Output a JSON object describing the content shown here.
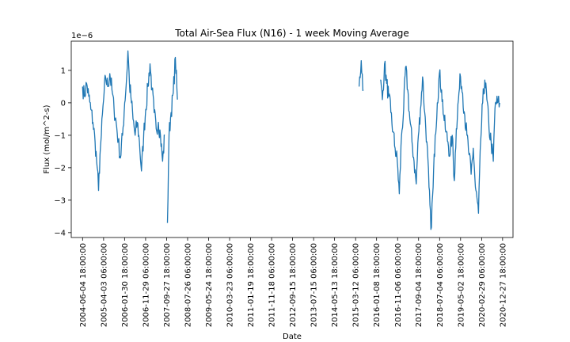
{
  "chart_data": {
    "type": "line",
    "title": "Total Air-Sea Flux (N16) - 1 week Moving Average",
    "xlabel": "Date",
    "ylabel": "Flux (mol/m^2-s)",
    "offset_label": "1e−6",
    "ylim": [
      -4.15,
      1.9
    ],
    "xlim": [
      "2003-12-24",
      "2021-05-26"
    ],
    "yticks": [
      {
        "value": 1,
        "label": "1"
      },
      {
        "value": 0,
        "label": "0"
      },
      {
        "value": -1,
        "label": "−1"
      },
      {
        "value": -2,
        "label": "−2"
      },
      {
        "value": -3,
        "label": "−3"
      },
      {
        "value": -4,
        "label": "−4"
      }
    ],
    "xticks": [
      {
        "date": "2004-06-04",
        "label": "2004-06-04 18:00:00"
      },
      {
        "date": "2005-04-03",
        "label": "2005-04-03 06:00:00"
      },
      {
        "date": "2006-01-30",
        "label": "2006-01-30 18:00:00"
      },
      {
        "date": "2006-11-29",
        "label": "2006-11-29 06:00:00"
      },
      {
        "date": "2007-09-27",
        "label": "2007-09-27 18:00:00"
      },
      {
        "date": "2008-07-26",
        "label": "2008-07-26 06:00:00"
      },
      {
        "date": "2009-05-24",
        "label": "2009-05-24 18:00:00"
      },
      {
        "date": "2010-03-23",
        "label": "2010-03-23 06:00:00"
      },
      {
        "date": "2011-01-19",
        "label": "2011-01-19 18:00:00"
      },
      {
        "date": "2011-11-18",
        "label": "2011-11-18 06:00:00"
      },
      {
        "date": "2012-09-15",
        "label": "2012-09-15 18:00:00"
      },
      {
        "date": "2013-07-15",
        "label": "2013-07-15 06:00:00"
      },
      {
        "date": "2014-05-13",
        "label": "2014-05-13 18:00:00"
      },
      {
        "date": "2015-03-12",
        "label": "2015-03-12 06:00:00"
      },
      {
        "date": "2016-01-08",
        "label": "2016-01-08 18:00:00"
      },
      {
        "date": "2016-11-06",
        "label": "2016-11-06 06:00:00"
      },
      {
        "date": "2017-09-04",
        "label": "2017-09-04 18:00:00"
      },
      {
        "date": "2018-07-04",
        "label": "2018-07-04 06:00:00"
      },
      {
        "date": "2019-05-02",
        "label": "2019-05-02 18:00:00"
      },
      {
        "date": "2020-02-29",
        "label": "2020-02-29 06:00:00"
      },
      {
        "date": "2020-12-27",
        "label": "2020-12-27 18:00:00"
      }
    ],
    "grid": false,
    "line_color": "#1f77b4",
    "series": [
      {
        "segments": [
          [
            [
              "2004-06-04",
              0.5
            ],
            [
              "2004-07-01",
              0.2
            ],
            [
              "2004-08-01",
              0.6
            ],
            [
              "2004-09-01",
              0.2
            ],
            [
              "2004-10-01",
              -0.2
            ],
            [
              "2004-11-01",
              -0.6
            ],
            [
              "2004-12-01",
              -1.2
            ],
            [
              "2005-01-01",
              -2.0
            ],
            [
              "2005-01-20",
              -2.7
            ],
            [
              "2005-02-10",
              -1.6
            ],
            [
              "2005-03-01",
              -1.0
            ],
            [
              "2005-04-03",
              0.1
            ],
            [
              "2005-05-01",
              0.8
            ],
            [
              "2005-06-01",
              0.5
            ],
            [
              "2005-07-01",
              0.9
            ],
            [
              "2005-08-01",
              0.4
            ],
            [
              "2005-09-01",
              -0.2
            ],
            [
              "2005-10-01",
              -0.6
            ],
            [
              "2005-11-01",
              -1.2
            ],
            [
              "2005-12-01",
              -1.7
            ],
            [
              "2006-01-01",
              -1.0
            ],
            [
              "2006-02-01",
              0.0
            ],
            [
              "2006-03-01",
              0.8
            ],
            [
              "2006-03-20",
              1.6
            ],
            [
              "2006-04-10",
              0.6
            ],
            [
              "2006-05-01",
              0.2
            ],
            [
              "2006-06-01",
              -0.5
            ],
            [
              "2006-07-01",
              -1.0
            ],
            [
              "2006-08-01",
              -0.6
            ],
            [
              "2006-09-01",
              -1.2
            ],
            [
              "2006-10-01",
              -2.1
            ],
            [
              "2006-11-01",
              -1.0
            ],
            [
              "2006-12-01",
              -0.2
            ],
            [
              "2007-01-01",
              0.5
            ],
            [
              "2007-02-01",
              1.2
            ],
            [
              "2007-03-01",
              0.4
            ],
            [
              "2007-04-01",
              -0.3
            ],
            [
              "2007-05-01",
              -0.8
            ],
            [
              "2007-06-01",
              -0.6
            ],
            [
              "2007-07-01",
              -1.0
            ],
            [
              "2007-08-01",
              -1.8
            ],
            [
              "2007-09-01",
              -1.0
            ]
          ],
          [
            [
              "2007-10-10",
              -3.7
            ],
            [
              "2007-11-01",
              -1.0
            ],
            [
              "2007-12-01",
              -0.3
            ],
            [
              "2008-01-01",
              0.3
            ],
            [
              "2008-02-01",
              1.4
            ],
            [
              "2008-03-01",
              0.1
            ]
          ],
          [
            [
              "2015-05-01",
              0.5
            ],
            [
              "2015-06-01",
              1.3
            ],
            [
              "2015-07-01",
              0.4
            ]
          ],
          [
            [
              "2016-03-01",
              0.7
            ],
            [
              "2016-04-01",
              0.1
            ],
            [
              "2016-05-01",
              1.2
            ],
            [
              "2016-06-01",
              0.6
            ],
            [
              "2016-07-01",
              0.2
            ],
            [
              "2016-08-01",
              -0.3
            ],
            [
              "2016-09-01",
              -0.9
            ],
            [
              "2016-10-01",
              -1.4
            ],
            [
              "2016-11-01",
              -1.8
            ],
            [
              "2016-12-01",
              -2.8
            ],
            [
              "2017-01-01",
              -1.0
            ],
            [
              "2017-02-01",
              -0.2
            ],
            [
              "2017-03-01",
              1.1
            ],
            [
              "2017-04-01",
              0.4
            ],
            [
              "2017-05-01",
              -0.5
            ],
            [
              "2017-06-01",
              -1.2
            ],
            [
              "2017-07-01",
              -1.8
            ],
            [
              "2017-08-01",
              -2.5
            ],
            [
              "2017-09-01",
              -1.0
            ],
            [
              "2017-10-01",
              -0.2
            ],
            [
              "2017-11-01",
              0.8
            ],
            [
              "2017-12-01",
              -0.3
            ],
            [
              "2018-01-01",
              -1.2
            ],
            [
              "2018-02-01",
              -2.6
            ],
            [
              "2018-03-01",
              -3.9
            ],
            [
              "2018-04-01",
              -2.6
            ],
            [
              "2018-05-01",
              -1.0
            ],
            [
              "2018-06-01",
              0.0
            ],
            [
              "2018-07-01",
              0.9
            ],
            [
              "2018-08-01",
              0.4
            ],
            [
              "2018-09-01",
              -0.4
            ],
            [
              "2018-10-01",
              -0.9
            ],
            [
              "2018-11-01",
              -1.2
            ],
            [
              "2018-12-01",
              -1.6
            ],
            [
              "2019-01-01",
              -1.0
            ],
            [
              "2019-02-01",
              -2.4
            ],
            [
              "2019-03-01",
              -0.8
            ],
            [
              "2019-04-01",
              0.1
            ],
            [
              "2019-05-01",
              0.8
            ],
            [
              "2019-06-01",
              0.3
            ],
            [
              "2019-07-01",
              -0.4
            ],
            [
              "2019-08-01",
              -1.0
            ],
            [
              "2019-09-01",
              -1.6
            ],
            [
              "2019-10-01",
              -2.2
            ],
            [
              "2019-11-01",
              -1.4
            ],
            [
              "2019-12-01",
              -2.6
            ],
            [
              "2020-01-15",
              -3.4
            ],
            [
              "2020-02-15",
              -1.2
            ],
            [
              "2020-03-15",
              0.0
            ],
            [
              "2020-04-15",
              0.7
            ],
            [
              "2020-05-15",
              0.1
            ],
            [
              "2020-06-15",
              -0.8
            ],
            [
              "2020-07-15",
              -1.2
            ],
            [
              "2020-08-15",
              -1.8
            ],
            [
              "2020-09-01",
              -0.6
            ],
            [
              "2020-09-15",
              0.0
            ],
            [
              "2020-10-15",
              0.0
            ],
            [
              "2020-11-15",
              0.0
            ]
          ]
        ]
      }
    ]
  }
}
